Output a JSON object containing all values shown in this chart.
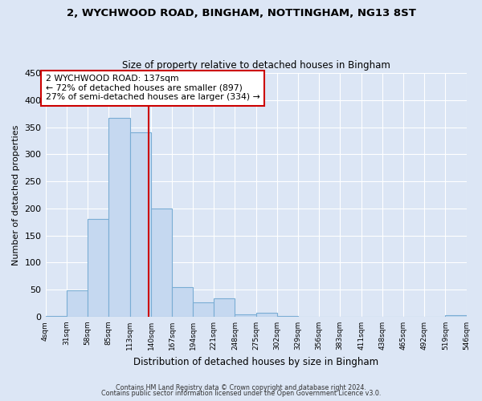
{
  "title_line1": "2, WYCHWOOD ROAD, BINGHAM, NOTTINGHAM, NG13 8ST",
  "title_line2": "Size of property relative to detached houses in Bingham",
  "xlabel": "Distribution of detached houses by size in Bingham",
  "ylabel": "Number of detached properties",
  "bar_color": "#c5d8f0",
  "bar_edge_color": "#7aadd4",
  "fig_bg_color": "#dce6f5",
  "plot_bg_color": "#dce6f5",
  "grid_color": "#ffffff",
  "vline_color": "#cc0000",
  "vline_x": 137,
  "annotation_line1": "2 WYCHWOOD ROAD: 137sqm",
  "annotation_line2": "← 72% of detached houses are smaller (897)",
  "annotation_line3": "27% of semi-detached houses are larger (334) →",
  "annotation_box_color": "#ffffff",
  "annotation_box_edge": "#cc0000",
  "footer_line1": "Contains HM Land Registry data © Crown copyright and database right 2024.",
  "footer_line2": "Contains public sector information licensed under the Open Government Licence v3.0.",
  "bin_edges": [
    4,
    31,
    58,
    85,
    113,
    140,
    167,
    194,
    221,
    248,
    275,
    302,
    329,
    356,
    383,
    411,
    438,
    465,
    492,
    519,
    546
  ],
  "bar_heights": [
    2,
    49,
    180,
    367,
    340,
    200,
    54,
    26,
    34,
    5,
    7,
    2,
    0,
    0,
    0,
    0,
    0,
    0,
    0,
    3
  ],
  "ylim": [
    0,
    450
  ],
  "yticks": [
    0,
    50,
    100,
    150,
    200,
    250,
    300,
    350,
    400,
    450
  ]
}
